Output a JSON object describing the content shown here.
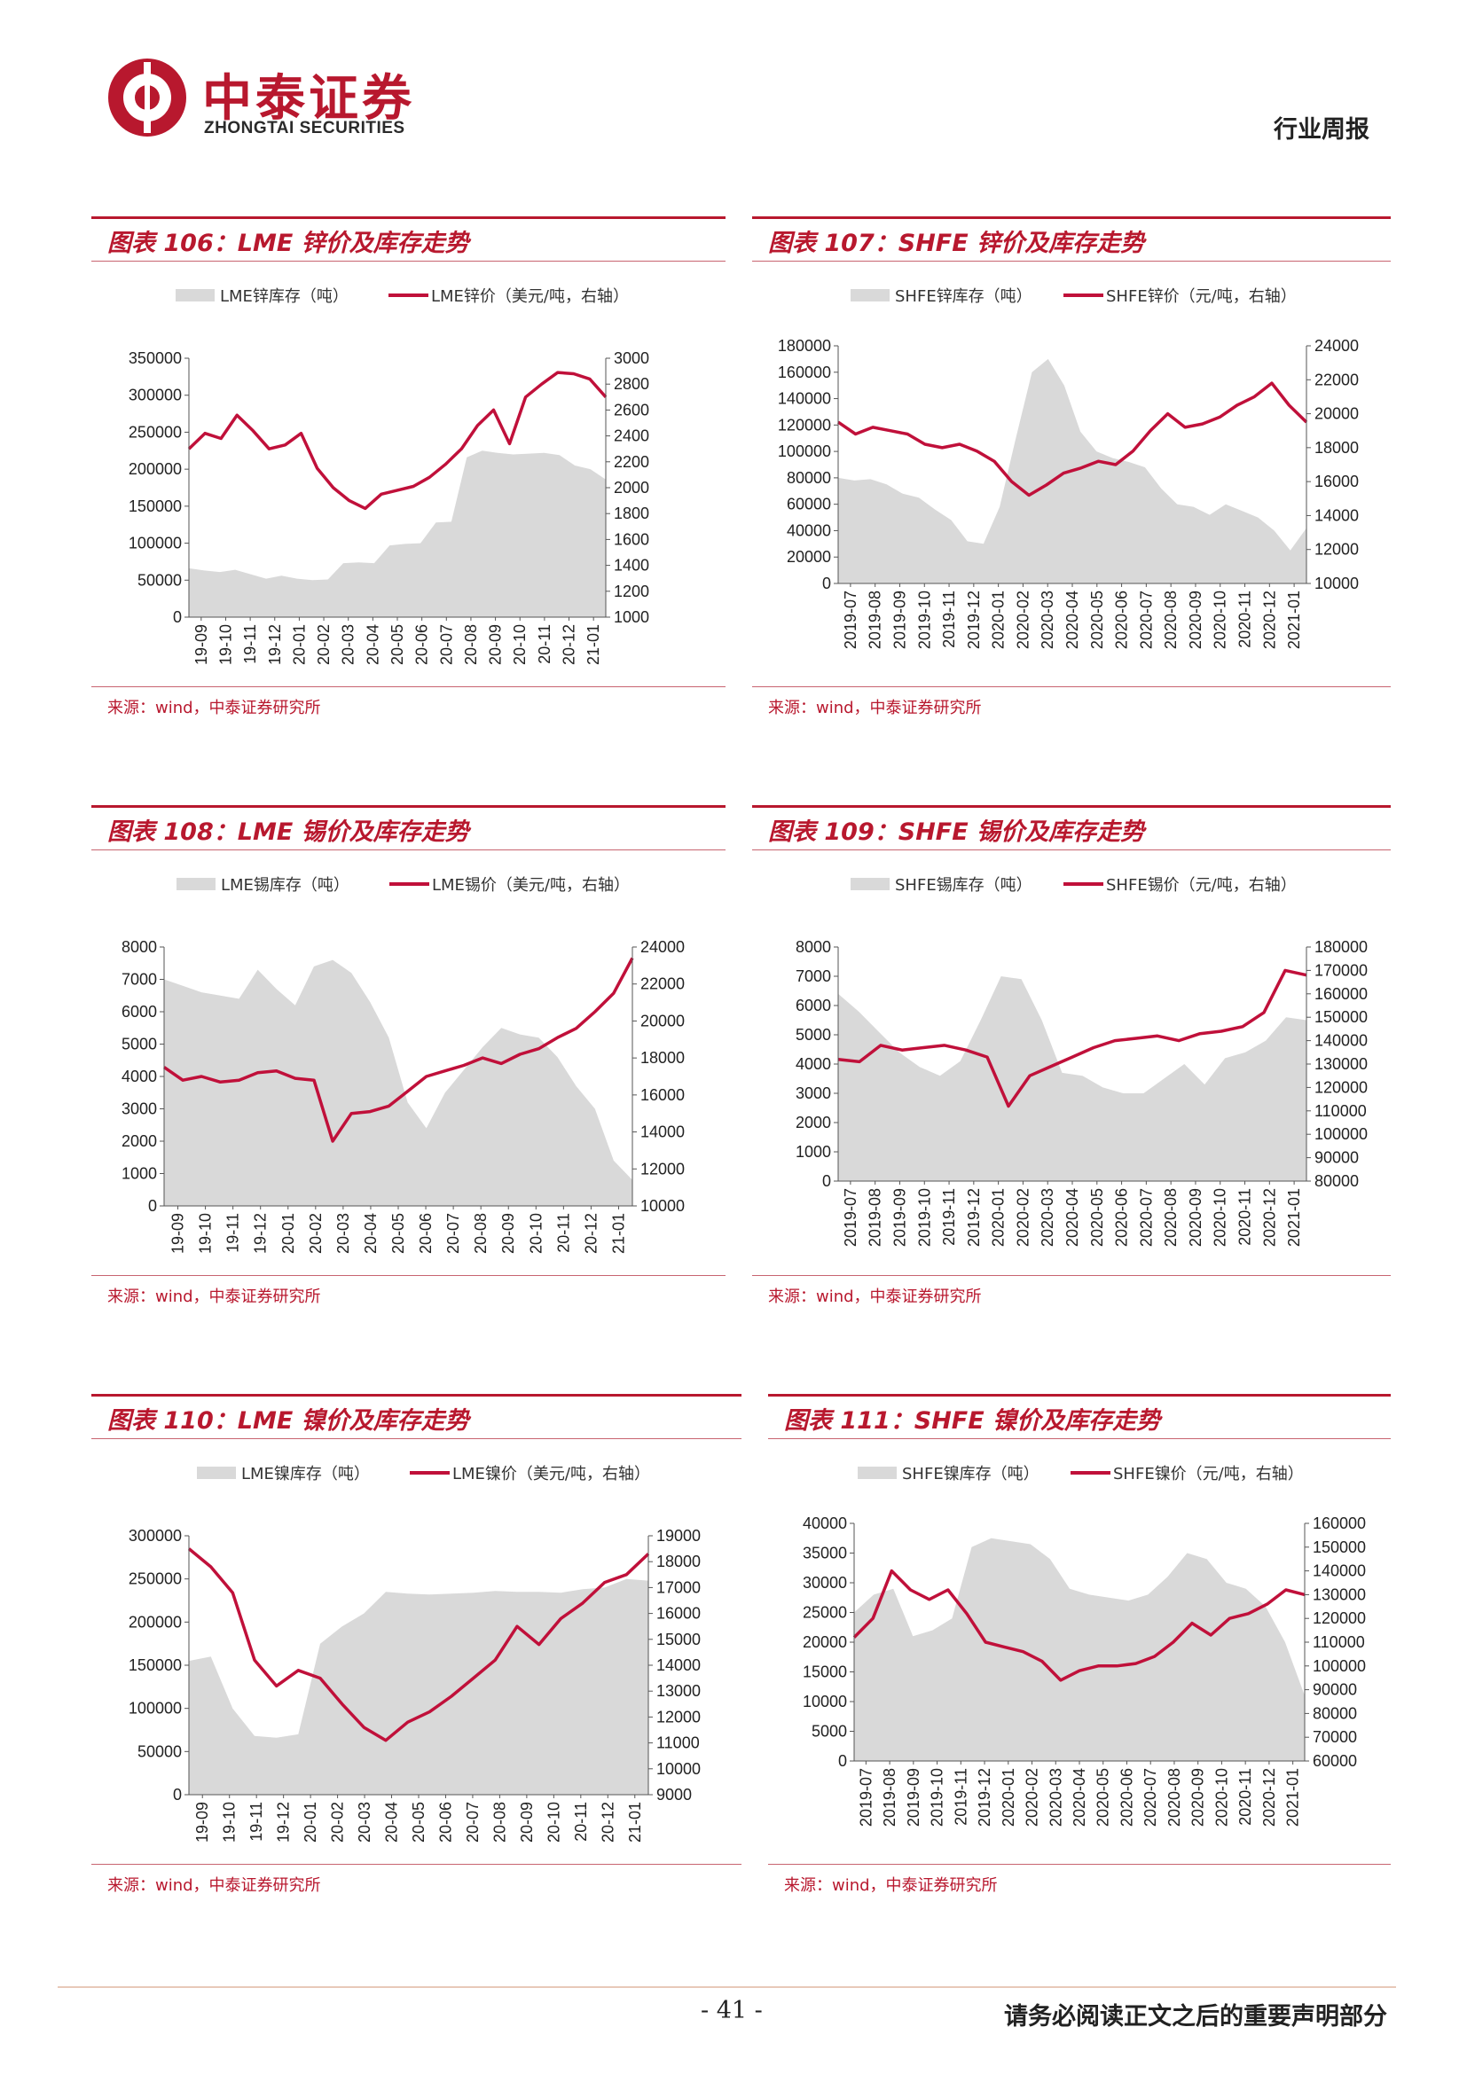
{
  "header": {
    "brand_cn": "中泰证券",
    "brand_en": "ZHONGTAI SECURITIES",
    "report_type": "行业周报"
  },
  "footer": {
    "page": "- 41 -",
    "disclaimer": "请务必阅读正文之后的重要声明部分"
  },
  "colors": {
    "accent": "#b8182e",
    "stock_fill": "#d9d9d9",
    "price_line": "#c0103a"
  },
  "chart_data": [
    {
      "id": "c106",
      "type": "area+line",
      "title": "图表 106：LME 锌价及库存走势",
      "source": "来源：wind，中泰证券研究所",
      "legend": [
        "LME锌库存（吨）",
        "LME锌价（美元/吨，右轴）"
      ],
      "x_labels": [
        "19-09",
        "19-10",
        "19-11",
        "19-12",
        "20-01",
        "20-02",
        "20-03",
        "20-04",
        "20-05",
        "20-06",
        "20-07",
        "20-08",
        "20-09",
        "20-10",
        "20-11",
        "20-12",
        "21-01"
      ],
      "yleft": {
        "min": 0,
        "max": 350000,
        "step": 50000,
        "ticks": [
          "0",
          "50000",
          "100000",
          "150000",
          "200000",
          "250000",
          "300000",
          "350000"
        ]
      },
      "yright": {
        "min": 1000,
        "max": 3000,
        "step": 200,
        "ticks": [
          "1000",
          "1200",
          "1400",
          "1600",
          "1800",
          "2000",
          "2200",
          "2400",
          "2600",
          "2800",
          "3000"
        ]
      },
      "stock": [
        66000,
        63000,
        61000,
        64000,
        58000,
        52000,
        56000,
        52000,
        50000,
        51000,
        73000,
        74000,
        73000,
        97000,
        99000,
        100000,
        128000,
        129000,
        216000,
        225000,
        222000,
        220000,
        221000,
        222000,
        219000,
        205000,
        200000,
        186000
      ],
      "price": [
        2300,
        2420,
        2380,
        2560,
        2440,
        2300,
        2330,
        2420,
        2150,
        2000,
        1900,
        1840,
        1950,
        1980,
        2010,
        2080,
        2180,
        2300,
        2480,
        2600,
        2340,
        2700,
        2800,
        2890,
        2880,
        2840,
        2700
      ]
    },
    {
      "id": "c107",
      "type": "area+line",
      "title": "图表 107：SHFE 锌价及库存走势",
      "source": "来源：wind，中泰证券研究所",
      "legend": [
        "SHFE锌库存（吨）",
        "SHFE锌价（元/吨，右轴）"
      ],
      "x_labels": [
        "2019-07",
        "2019-08",
        "2019-09",
        "2019-10",
        "2019-11",
        "2019-12",
        "2020-01",
        "2020-02",
        "2020-03",
        "2020-04",
        "2020-05",
        "2020-06",
        "2020-07",
        "2020-08",
        "2020-09",
        "2020-10",
        "2020-11",
        "2020-12",
        "2021-01"
      ],
      "yleft": {
        "min": 0,
        "max": 180000,
        "step": 20000,
        "ticks": [
          "0",
          "20000",
          "40000",
          "60000",
          "80000",
          "100000",
          "120000",
          "140000",
          "160000",
          "180000"
        ]
      },
      "yright": {
        "min": 10000,
        "max": 24000,
        "step": 2000,
        "ticks": [
          "10000",
          "12000",
          "14000",
          "16000",
          "18000",
          "20000",
          "22000",
          "24000"
        ]
      },
      "stock": [
        80000,
        78000,
        79000,
        75000,
        68000,
        65000,
        56000,
        48000,
        32000,
        30000,
        58000,
        110000,
        160000,
        170000,
        150000,
        115000,
        100000,
        95000,
        92000,
        88000,
        72000,
        60000,
        58000,
        52000,
        60000,
        55000,
        50000,
        40000,
        25000,
        42000
      ],
      "price": [
        19500,
        18800,
        19200,
        19000,
        18800,
        18200,
        18000,
        18200,
        17800,
        17200,
        16000,
        15200,
        15800,
        16500,
        16800,
        17200,
        17000,
        17800,
        19000,
        20000,
        19200,
        19400,
        19800,
        20500,
        21000,
        21800,
        20500,
        19500
      ]
    },
    {
      "id": "c108",
      "type": "area+line",
      "title": "图表 108：LME 锡价及库存走势",
      "source": "来源：wind，中泰证券研究所",
      "legend": [
        "LME锡库存（吨）",
        "LME锡价（美元/吨，右轴）"
      ],
      "x_labels": [
        "19-09",
        "19-10",
        "19-11",
        "19-12",
        "20-01",
        "20-02",
        "20-03",
        "20-04",
        "20-05",
        "20-06",
        "20-07",
        "20-08",
        "20-09",
        "20-10",
        "20-11",
        "20-12",
        "21-01"
      ],
      "yleft": {
        "min": 0,
        "max": 8000,
        "step": 1000,
        "ticks": [
          "0",
          "1000",
          "2000",
          "3000",
          "4000",
          "5000",
          "6000",
          "7000",
          "8000"
        ]
      },
      "yright": {
        "min": 10000,
        "max": 24000,
        "step": 2000,
        "ticks": [
          "10000",
          "12000",
          "14000",
          "16000",
          "18000",
          "20000",
          "22000",
          "24000"
        ]
      },
      "stock": [
        7000,
        6800,
        6600,
        6500,
        6400,
        7300,
        6700,
        6200,
        7400,
        7600,
        7200,
        6300,
        5200,
        3200,
        2400,
        3500,
        4200,
        4900,
        5500,
        5300,
        5200,
        4600,
        3700,
        3000,
        1400,
        800
      ],
      "price": [
        17500,
        16800,
        17000,
        16700,
        16800,
        17200,
        17300,
        16900,
        16800,
        13500,
        15000,
        15100,
        15400,
        16200,
        17000,
        17300,
        17600,
        18000,
        17700,
        18200,
        18500,
        19100,
        19600,
        20500,
        21500,
        23400
      ]
    },
    {
      "id": "c109",
      "type": "area+line",
      "title": "图表 109：SHFE 锡价及库存走势",
      "source": "来源：wind，中泰证券研究所",
      "legend": [
        "SHFE锡库存（吨）",
        "SHFE锡价（元/吨，右轴）"
      ],
      "x_labels": [
        "2019-07",
        "2019-08",
        "2019-09",
        "2019-10",
        "2019-11",
        "2019-12",
        "2020-01",
        "2020-02",
        "2020-03",
        "2020-04",
        "2020-05",
        "2020-06",
        "2020-07",
        "2020-08",
        "2020-09",
        "2020-10",
        "2020-11",
        "2020-12",
        "2021-01"
      ],
      "yleft": {
        "min": 0,
        "max": 8000,
        "step": 1000,
        "ticks": [
          "0",
          "1000",
          "2000",
          "3000",
          "4000",
          "5000",
          "6000",
          "7000",
          "8000"
        ]
      },
      "yright": {
        "min": 80000,
        "max": 180000,
        "step": 10000,
        "ticks": [
          "80000",
          "90000",
          "100000",
          "110000",
          "120000",
          "130000",
          "140000",
          "150000",
          "160000",
          "170000",
          "180000"
        ]
      },
      "stock": [
        6400,
        5800,
        5100,
        4400,
        3900,
        3600,
        4100,
        5500,
        7000,
        6900,
        5500,
        3700,
        3600,
        3200,
        3000,
        3000,
        3500,
        4000,
        3300,
        4200,
        4400,
        4800,
        5600,
        5500
      ],
      "price": [
        132000,
        131000,
        138000,
        136000,
        137000,
        138000,
        136000,
        133000,
        112000,
        125000,
        129000,
        133000,
        137000,
        140000,
        141000,
        142000,
        140000,
        143000,
        144000,
        146000,
        152000,
        170000,
        168000
      ],
      "xy_note": ""
    },
    {
      "id": "c110",
      "type": "area+line",
      "title": "图表 110：LME 镍价及库存走势",
      "source": "来源：wind，中泰证券研究所",
      "legend": [
        "LME镍库存（吨）",
        "LME镍价（美元/吨，右轴）"
      ],
      "x_labels": [
        "19-09",
        "19-10",
        "19-11",
        "19-12",
        "20-01",
        "20-02",
        "20-03",
        "20-04",
        "20-05",
        "20-06",
        "20-07",
        "20-08",
        "20-09",
        "20-10",
        "20-11",
        "20-12",
        "21-01"
      ],
      "yleft": {
        "min": 0,
        "max": 300000,
        "step": 50000,
        "ticks": [
          "0",
          "50000",
          "100000",
          "150000",
          "200000",
          "250000",
          "300000"
        ]
      },
      "yright": {
        "min": 9000,
        "max": 19000,
        "step": 1000,
        "ticks": [
          "9000",
          "10000",
          "11000",
          "12000",
          "13000",
          "14000",
          "15000",
          "16000",
          "17000",
          "18000",
          "19000"
        ]
      },
      "stock": [
        155000,
        160000,
        100000,
        68000,
        66000,
        70000,
        175000,
        195000,
        210000,
        235000,
        233000,
        232000,
        233000,
        234000,
        236000,
        235000,
        235000,
        234000,
        238000,
        240000,
        250000,
        248000
      ],
      "price": [
        18500,
        17800,
        16800,
        14200,
        13200,
        13800,
        13500,
        12500,
        11600,
        11100,
        11800,
        12200,
        12800,
        13500,
        14200,
        15500,
        14800,
        15800,
        16400,
        17200,
        17500,
        18300
      ]
    },
    {
      "id": "c111",
      "type": "area+line",
      "title": "图表 111：SHFE 镍价及库存走势",
      "source": "来源：wind，中泰证券研究所",
      "legend": [
        "SHFE镍库存（吨）",
        "SHFE镍价（元/吨，右轴）"
      ],
      "x_labels": [
        "2019-07",
        "2019-08",
        "2019-09",
        "2019-10",
        "2019-11",
        "2019-12",
        "2020-01",
        "2020-02",
        "2020-03",
        "2020-04",
        "2020-05",
        "2020-06",
        "2020-07",
        "2020-08",
        "2020-09",
        "2020-10",
        "2020-11",
        "2020-12",
        "2021-01"
      ],
      "yleft": {
        "min": 0,
        "max": 40000,
        "step": 5000,
        "ticks": [
          "0",
          "5000",
          "10000",
          "15000",
          "20000",
          "25000",
          "30000",
          "35000",
          "40000"
        ]
      },
      "yright": {
        "min": 60000,
        "max": 160000,
        "step": 10000,
        "ticks": [
          "60000",
          "70000",
          "80000",
          "90000",
          "100000",
          "110000",
          "120000",
          "130000",
          "140000",
          "150000",
          "160000"
        ]
      },
      "stock": [
        25000,
        28000,
        29000,
        21000,
        22000,
        24000,
        36000,
        37500,
        37000,
        36500,
        34000,
        29000,
        28000,
        27500,
        27000,
        28000,
        31000,
        35000,
        34000,
        30000,
        29000,
        26000,
        20000,
        11000
      ],
      "price": [
        112000,
        120000,
        140000,
        132000,
        128000,
        132000,
        122000,
        110000,
        108000,
        106000,
        102000,
        94000,
        98000,
        100000,
        100000,
        101000,
        104000,
        110000,
        118000,
        113000,
        120000,
        122000,
        126000,
        132000,
        130000
      ]
    }
  ]
}
